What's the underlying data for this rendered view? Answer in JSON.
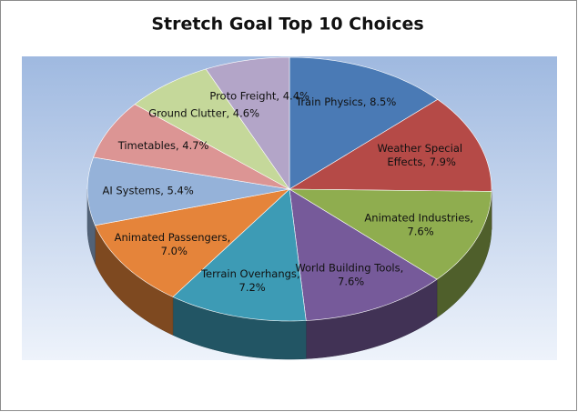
{
  "chart_data": {
    "type": "pie3d",
    "title": "Stretch Goal Top 10 Choices",
    "values": [
      8.5,
      7.9,
      7.6,
      7.6,
      7.2,
      7.0,
      5.4,
      4.7,
      4.6,
      4.4
    ],
    "value_labels": [
      "Train Physics, 8.5%",
      "Weather Special Effects, 7.9%",
      "Animated Industries, 7.6%",
      "World Building Tools, 7.6%",
      "Terrain Overhangs, 7.2%",
      "Animated Passengers, 7.0%",
      "AI Systems, 5.4%",
      "Timetables, 4.7%",
      "Ground Clutter, 4.6%",
      "Proto Freight, 4.4%"
    ],
    "colors": [
      "#4a7ab5",
      "#b54a47",
      "#8fad4f",
      "#765a9a",
      "#3d9bb5",
      "#e5843a",
      "#95b2d9",
      "#dc9594",
      "#c5d89a",
      "#b3a5c8"
    ]
  }
}
